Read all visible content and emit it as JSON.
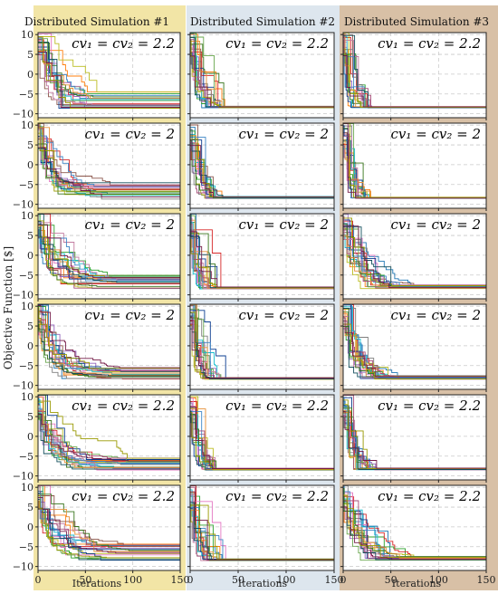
{
  "figure": {
    "ylabel": "Objective Function [$]",
    "xlabel": "Iterations",
    "column_titles": [
      "Distributed Simulation #1",
      "Distributed Simulation #2",
      "Distributed Simulation #3"
    ],
    "column_colors": [
      "#f2e5a6",
      "#dde6ee",
      "#d8c0a6"
    ],
    "row_labels": [
      "cv₁ = cv₂ = 2.2",
      "cv₁ = cv₂ = 2",
      "cv₁ = cv₂ = 2",
      "cv₁ = cv₂ = 2",
      "cv₁ = cv₂ = 2.2",
      "cv₁ = cv₂ = 2.2"
    ],
    "series_colors": [
      "#1f77b4",
      "#ff7f0e",
      "#2ca02c",
      "#d62728",
      "#9467bd",
      "#8c564b",
      "#e377c2",
      "#7f7f7f",
      "#bcbd22",
      "#17becf",
      "#0b3d91",
      "#6aa84f",
      "#c27ba0",
      "#3d85c6",
      "#a64d79",
      "#38761d",
      "#e69138",
      "#134f5c",
      "#999900",
      "#741b47"
    ]
  },
  "chart_data": {
    "type": "line",
    "layout": "grid 6 rows x 3 columns of small multiples",
    "xlim": [
      0,
      150
    ],
    "ylim": [
      -11,
      10.5
    ],
    "xticks": [
      0,
      50,
      100,
      150
    ],
    "yticks": [
      10,
      5,
      0,
      -5,
      -10
    ],
    "grid": true,
    "series_per_panel": 20,
    "panels": [
      {
        "row": 0,
        "col": 0,
        "converged_min": -9,
        "converged_max": -4.5,
        "decay_iter": 20
      },
      {
        "row": 0,
        "col": 1,
        "converged_min": -8.5,
        "converged_max": -8,
        "decay_iter": 12
      },
      {
        "row": 0,
        "col": 2,
        "converged_min": -8.5,
        "converged_max": -8.2,
        "decay_iter": 10
      },
      {
        "row": 1,
        "col": 0,
        "converged_min": -9,
        "converged_max": -4.5,
        "decay_iter": 25
      },
      {
        "row": 1,
        "col": 1,
        "converged_min": -8.5,
        "converged_max": -8,
        "decay_iter": 12
      },
      {
        "row": 1,
        "col": 2,
        "converged_min": -8.5,
        "converged_max": -8.2,
        "decay_iter": 10
      },
      {
        "row": 2,
        "col": 0,
        "converged_min": -8.5,
        "converged_max": -4.5,
        "decay_iter": 30
      },
      {
        "row": 2,
        "col": 1,
        "converged_min": -8.5,
        "converged_max": -8,
        "decay_iter": 10
      },
      {
        "row": 2,
        "col": 2,
        "converged_min": -8.5,
        "converged_max": -7.5,
        "decay_iter": 25
      },
      {
        "row": 3,
        "col": 0,
        "converged_min": -8.5,
        "converged_max": -5.5,
        "decay_iter": 30
      },
      {
        "row": 3,
        "col": 1,
        "converged_min": -8.5,
        "converged_max": -8,
        "decay_iter": 12
      },
      {
        "row": 3,
        "col": 2,
        "converged_min": -8.5,
        "converged_max": -7.5,
        "decay_iter": 20
      },
      {
        "row": 4,
        "col": 0,
        "converged_min": -8.5,
        "converged_max": -5.5,
        "decay_iter": 35
      },
      {
        "row": 4,
        "col": 1,
        "converged_min": -8.5,
        "converged_max": -8,
        "decay_iter": 12
      },
      {
        "row": 4,
        "col": 2,
        "converged_min": -8.5,
        "converged_max": -8,
        "decay_iter": 12
      },
      {
        "row": 5,
        "col": 0,
        "converged_min": -8.5,
        "converged_max": -4,
        "decay_iter": 35
      },
      {
        "row": 5,
        "col": 1,
        "converged_min": -8.5,
        "converged_max": -8,
        "decay_iter": 12
      },
      {
        "row": 5,
        "col": 2,
        "converged_min": -8.5,
        "converged_max": -7.5,
        "decay_iter": 25
      }
    ]
  }
}
